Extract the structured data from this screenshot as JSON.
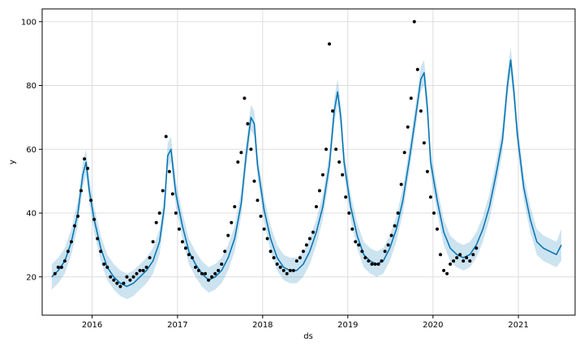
{
  "chart_data": {
    "type": "scatter",
    "title": "",
    "xlabel": "ds",
    "ylabel": "y",
    "xlim": [
      "2015-06-01",
      "2021-09-01"
    ],
    "ylim": [
      8,
      104
    ],
    "x_ticks": [
      "2016",
      "2017",
      "2018",
      "2019",
      "2020",
      "2021"
    ],
    "y_ticks": [
      20,
      40,
      60,
      80,
      100
    ],
    "grid": true,
    "colors": {
      "observed": "#000000",
      "forecast_line": "#0072B2",
      "uncertainty_band": "#0072B2"
    },
    "observed": {
      "x": [
        "2015-07-26",
        "2015-08-09",
        "2015-08-23",
        "2015-09-06",
        "2015-09-20",
        "2015-10-04",
        "2015-10-18",
        "2015-11-01",
        "2015-11-15",
        "2015-11-29",
        "2015-12-13",
        "2015-12-27",
        "2016-01-10",
        "2016-01-24",
        "2016-02-07",
        "2016-02-21",
        "2016-03-06",
        "2016-03-20",
        "2016-04-03",
        "2016-04-17",
        "2016-05-01",
        "2016-05-15",
        "2016-05-29",
        "2016-06-12",
        "2016-06-26",
        "2016-07-10",
        "2016-07-24",
        "2016-08-07",
        "2016-08-21",
        "2016-09-04",
        "2016-09-18",
        "2016-10-02",
        "2016-10-16",
        "2016-10-30",
        "2016-11-13",
        "2016-11-27",
        "2016-12-11",
        "2016-12-25",
        "2017-01-08",
        "2017-01-22",
        "2017-02-05",
        "2017-02-19",
        "2017-03-05",
        "2017-03-19",
        "2017-04-02",
        "2017-04-16",
        "2017-04-30",
        "2017-05-14",
        "2017-05-28",
        "2017-06-11",
        "2017-06-25",
        "2017-07-09",
        "2017-07-23",
        "2017-08-06",
        "2017-08-20",
        "2017-09-03",
        "2017-09-17",
        "2017-10-01",
        "2017-10-15",
        "2017-10-29",
        "2017-11-12",
        "2017-11-26",
        "2017-12-10",
        "2017-12-24",
        "2018-01-07",
        "2018-01-21",
        "2018-02-04",
        "2018-02-18",
        "2018-03-04",
        "2018-03-18",
        "2018-04-01",
        "2018-04-15",
        "2018-04-29",
        "2018-05-13",
        "2018-05-27",
        "2018-06-10",
        "2018-06-24",
        "2018-07-08",
        "2018-07-22",
        "2018-08-05",
        "2018-08-19",
        "2018-09-02",
        "2018-09-16",
        "2018-09-30",
        "2018-10-14",
        "2018-10-28",
        "2018-11-11",
        "2018-11-25",
        "2018-12-09",
        "2018-12-23",
        "2019-01-06",
        "2019-01-20",
        "2019-02-03",
        "2019-02-17",
        "2019-03-03",
        "2019-03-17",
        "2019-03-31",
        "2019-04-14",
        "2019-04-28",
        "2019-05-12",
        "2019-05-26",
        "2019-06-09",
        "2019-06-23",
        "2019-07-07",
        "2019-07-21",
        "2019-08-04",
        "2019-08-18",
        "2019-09-01",
        "2019-09-15",
        "2019-09-29",
        "2019-10-13",
        "2019-10-27",
        "2019-11-10",
        "2019-11-24",
        "2019-12-08",
        "2019-12-22",
        "2020-01-05",
        "2020-01-19",
        "2020-02-02",
        "2020-02-16",
        "2020-03-01",
        "2020-03-15",
        "2020-03-29",
        "2020-04-12",
        "2020-04-26",
        "2020-05-10",
        "2020-05-24",
        "2020-06-07",
        "2020-06-21",
        "2020-07-05"
      ],
      "y": [
        21,
        23,
        23,
        25,
        28,
        31,
        36,
        39,
        47,
        57,
        54,
        44,
        38,
        32,
        28,
        24,
        23,
        20,
        19,
        18,
        17,
        18,
        20,
        19,
        20,
        21,
        22,
        22,
        23,
        26,
        31,
        37,
        40,
        47,
        64,
        53,
        46,
        40,
        35,
        31,
        29,
        27,
        26,
        23,
        22,
        21,
        21,
        19,
        20,
        21,
        22,
        24,
        28,
        33,
        37,
        42,
        56,
        59,
        76,
        68,
        60,
        50,
        44,
        39,
        35,
        32,
        28,
        26,
        24,
        23,
        22,
        21,
        22,
        22,
        25,
        26,
        28,
        30,
        32,
        34,
        42,
        47,
        52,
        60,
        93,
        72,
        60,
        56,
        52,
        45,
        40,
        35,
        31,
        30,
        28,
        26,
        25,
        24,
        24,
        24,
        25,
        28,
        30,
        33,
        36,
        40,
        49,
        59,
        67,
        76,
        100,
        85,
        72,
        62,
        53,
        45,
        40,
        35,
        27,
        22,
        21,
        24,
        25,
        26,
        27,
        25,
        26,
        25,
        27,
        29
      ]
    },
    "forecast": {
      "x": [
        "2015-07-12",
        "2015-08-09",
        "2015-09-06",
        "2015-10-04",
        "2015-11-01",
        "2015-11-22",
        "2015-12-06",
        "2015-12-20",
        "2016-01-10",
        "2016-02-07",
        "2016-03-06",
        "2016-04-03",
        "2016-05-01",
        "2016-05-29",
        "2016-06-26",
        "2016-07-24",
        "2016-08-21",
        "2016-09-18",
        "2016-10-16",
        "2016-11-06",
        "2016-11-20",
        "2016-12-04",
        "2016-12-25",
        "2017-01-22",
        "2017-02-19",
        "2017-03-19",
        "2017-04-16",
        "2017-05-14",
        "2017-06-11",
        "2017-07-09",
        "2017-08-06",
        "2017-09-03",
        "2017-10-01",
        "2017-10-22",
        "2017-11-12",
        "2017-11-26",
        "2017-12-10",
        "2018-01-07",
        "2018-02-04",
        "2018-03-04",
        "2018-04-01",
        "2018-04-29",
        "2018-05-27",
        "2018-06-24",
        "2018-07-22",
        "2018-08-19",
        "2018-09-16",
        "2018-10-14",
        "2018-11-04",
        "2018-11-18",
        "2018-12-02",
        "2018-12-16",
        "2019-01-13",
        "2019-02-10",
        "2019-03-10",
        "2019-04-07",
        "2019-05-05",
        "2019-06-02",
        "2019-06-30",
        "2019-07-28",
        "2019-08-25",
        "2019-09-22",
        "2019-10-20",
        "2019-11-10",
        "2019-11-24",
        "2019-12-08",
        "2019-12-22",
        "2020-01-19",
        "2020-02-16",
        "2020-03-15",
        "2020-04-12",
        "2020-05-10",
        "2020-06-07",
        "2020-07-05",
        "2020-08-02",
        "2020-08-30",
        "2020-09-27",
        "2020-10-25",
        "2020-11-15",
        "2020-11-29",
        "2020-12-13",
        "2020-12-27",
        "2021-01-24",
        "2021-02-21",
        "2021-03-21",
        "2021-04-18",
        "2021-05-16",
        "2021-06-13",
        "2021-07-04"
      ],
      "yhat": [
        20,
        22,
        25,
        31,
        40,
        52,
        56,
        47,
        38,
        29,
        23,
        20,
        18,
        17,
        18,
        20,
        22,
        25,
        31,
        42,
        58,
        60,
        46,
        36,
        28,
        24,
        21,
        19,
        20,
        22,
        26,
        32,
        43,
        58,
        70,
        68,
        55,
        41,
        32,
        26,
        23,
        22,
        22,
        24,
        28,
        34,
        42,
        55,
        72,
        78,
        70,
        56,
        42,
        33,
        27,
        25,
        24,
        25,
        29,
        35,
        44,
        57,
        71,
        82,
        84,
        73,
        56,
        44,
        34,
        29,
        27,
        26,
        27,
        30,
        35,
        42,
        52,
        63,
        80,
        88,
        78,
        65,
        48,
        38,
        31,
        29,
        28,
        27,
        30
      ],
      "yhat_lower": [
        16,
        18,
        21,
        27,
        36,
        48,
        52,
        43,
        34,
        25,
        19,
        16,
        14,
        13,
        14,
        16,
        18,
        21,
        27,
        38,
        54,
        56,
        42,
        32,
        24,
        20,
        17,
        15,
        16,
        18,
        22,
        28,
        39,
        54,
        66,
        64,
        51,
        37,
        28,
        22,
        19,
        18,
        18,
        20,
        24,
        30,
        38,
        51,
        68,
        74,
        66,
        52,
        38,
        29,
        23,
        21,
        20,
        21,
        25,
        31,
        40,
        53,
        67,
        78,
        80,
        69,
        52,
        40,
        30,
        25,
        23,
        22,
        23,
        26,
        31,
        38,
        48,
        59,
        76,
        84,
        74,
        61,
        44,
        34,
        27,
        25,
        24,
        23,
        25
      ],
      "yhat_upper": [
        24,
        26,
        29,
        35,
        44,
        56,
        60,
        51,
        42,
        33,
        27,
        24,
        22,
        21,
        22,
        24,
        26,
        29,
        35,
        46,
        62,
        64,
        50,
        40,
        32,
        28,
        25,
        23,
        24,
        26,
        30,
        36,
        47,
        62,
        74,
        72,
        59,
        45,
        36,
        30,
        27,
        26,
        26,
        28,
        32,
        38,
        46,
        59,
        76,
        82,
        74,
        60,
        46,
        37,
        31,
        29,
        28,
        29,
        33,
        39,
        48,
        61,
        75,
        86,
        88,
        77,
        60,
        48,
        38,
        33,
        31,
        30,
        31,
        34,
        39,
        46,
        56,
        67,
        84,
        92,
        82,
        69,
        52,
        42,
        35,
        33,
        32,
        31,
        35
      ]
    }
  }
}
